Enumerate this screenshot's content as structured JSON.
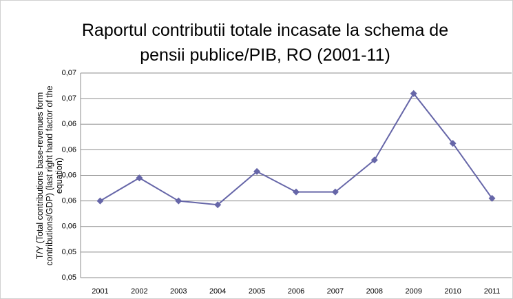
{
  "chart_data": {
    "type": "line",
    "title": "Raportul contributii totale incasate la schema de pensii publice/PIB, RO (2001-11)",
    "y_label": "T/Y (Total contributions base-revenues form contributions/GDP) (last right hand factor of the equation)",
    "categories": [
      "2001",
      "2002",
      "2003",
      "2004",
      "2005",
      "2006",
      "2007",
      "2008",
      "2009",
      "2010",
      "2011"
    ],
    "series": [
      {
        "name": "T/Y",
        "color": "#6666a8",
        "values": [
          0.058,
          0.0598,
          0.058,
          0.0577,
          0.0603,
          0.0587,
          0.0587,
          0.0612,
          0.0664,
          0.0625,
          0.0582
        ]
      }
    ],
    "ylim": [
      0.052,
      0.068
    ],
    "yticks": [
      {
        "value": 0.052,
        "label": "0,05"
      },
      {
        "value": 0.054,
        "label": "0,05"
      },
      {
        "value": 0.056,
        "label": "0,06"
      },
      {
        "value": 0.058,
        "label": "0,06"
      },
      {
        "value": 0.06,
        "label": "0,06"
      },
      {
        "value": 0.062,
        "label": "0,06"
      },
      {
        "value": 0.064,
        "label": "0,06"
      },
      {
        "value": 0.066,
        "label": "0,07"
      },
      {
        "value": 0.068,
        "label": "0,07"
      }
    ],
    "grid": true
  }
}
